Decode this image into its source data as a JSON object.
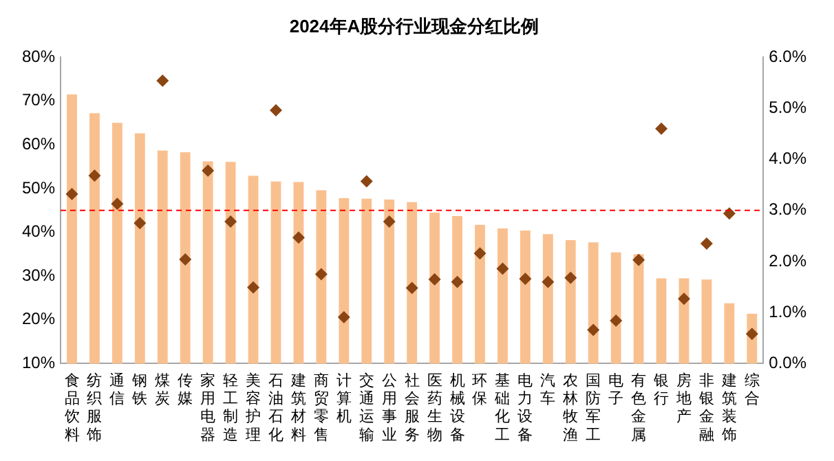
{
  "chart_data": {
    "type": "bar",
    "title": "2024年A股分行业现金分红比例",
    "categories": [
      "食品饮料",
      "纺织服饰",
      "通信",
      "钢铁",
      "煤炭",
      "传媒",
      "家用电器",
      "轻工制造",
      "美容护理",
      "石油石化",
      "建筑材料",
      "商贸零售",
      "计算机",
      "交通运输",
      "公用事业",
      "社会服务",
      "医药生物",
      "机械设备",
      "环保",
      "基础化工",
      "电力设备",
      "汽车",
      "农林牧渔",
      "国防军工",
      "电子",
      "有色金属",
      "银行",
      "房地产",
      "非银金融",
      "建筑装饰",
      "综合"
    ],
    "series": [
      {
        "color": "#f9c08f",
        "values": [
          71.5,
          67.2,
          65.0,
          62.6,
          58.7,
          58.3,
          56.2,
          56.1,
          52.9,
          51.6,
          51.5,
          49.6,
          47.8,
          47.7,
          47.5,
          46.9,
          44.5,
          43.7,
          41.7,
          40.9,
          40.4,
          39.6,
          38.2,
          37.7,
          35.4,
          35.0,
          29.5,
          29.5,
          29.2,
          23.8,
          21.4
        ]
      },
      {
        "type": "scatter",
        "axis": "y2",
        "color": "#8b4513",
        "marker": "diamond",
        "x": [
          "食品饮料",
          "纺织服饰",
          "通信",
          "钢铁",
          "煤炭",
          "传媒",
          "家用电器",
          "轻工制造",
          "美容护理",
          "石油石化",
          "建筑材料",
          "商贸零售",
          "计算机",
          "交通运输",
          "公用事业",
          "社会服务",
          "医药生物",
          "机械设备",
          "环保",
          "基础化工",
          "电力设备",
          "汽车",
          "农林牧渔",
          "国防军工",
          "电子",
          "有色金属",
          "银行",
          "房地产",
          "非银金融",
          "建筑装饰",
          "综合"
        ],
        "values": [
          3.32,
          3.68,
          3.13,
          2.75,
          5.54,
          2.04,
          3.78,
          2.78,
          1.49,
          4.96,
          2.47,
          1.75,
          0.91,
          3.57,
          2.78,
          1.48,
          1.65,
          1.6,
          2.16,
          1.86,
          1.66,
          1.6,
          1.68,
          0.66,
          0.84,
          2.03,
          4.6,
          1.27,
          2.35,
          2.94,
          0.58
        ]
      }
    ],
    "ylim": [
      10,
      80
    ],
    "yticks": [
      {
        "value": 10,
        "label": "10%"
      },
      {
        "value": 20,
        "label": "20%"
      },
      {
        "value": 30,
        "label": "30%"
      },
      {
        "value": 40,
        "label": "40%"
      },
      {
        "value": 50,
        "label": "50%"
      },
      {
        "value": 60,
        "label": "60%"
      },
      {
        "value": 70,
        "label": "70%"
      },
      {
        "value": 80,
        "label": "80%"
      }
    ],
    "y2lim": [
      0,
      6
    ],
    "y2ticks": [
      {
        "value": 0,
        "label": "0.0%"
      },
      {
        "value": 1,
        "label": "1.0%"
      },
      {
        "value": 2,
        "label": "2.0%"
      },
      {
        "value": 3,
        "label": "3.0%"
      },
      {
        "value": 4,
        "label": "4.0%"
      },
      {
        "value": 5,
        "label": "5.0%"
      },
      {
        "value": 6,
        "label": "6.0%"
      }
    ],
    "ref_lines": [
      {
        "axis": "y",
        "value": 45,
        "color": "#ff0000",
        "line_style": "dashed"
      }
    ],
    "grid": false,
    "legend": false
  }
}
